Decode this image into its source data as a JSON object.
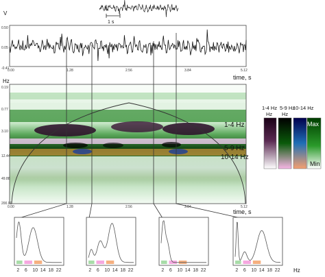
{
  "top_signal": {
    "scale_label": "1 s"
  },
  "eeg": {
    "y_unit": "V",
    "y_ticks": [
      "0.50",
      "0.05",
      "-0.41"
    ],
    "x_ticks": [
      "0.00",
      "1.28",
      "2.56",
      "3.84",
      "5.12"
    ],
    "x_label": "time, s"
  },
  "spectrogram": {
    "y_unit": "Hz",
    "y_ticks": [
      "0.19",
      "0.77",
      "3.10",
      "12.44",
      "49.88",
      "200.00"
    ],
    "x_ticks": [
      "0.00",
      "1.28",
      "2.56",
      "3.84",
      "5.12"
    ],
    "x_label": "time, s",
    "band_labels": [
      "1-4 Hz",
      "5-9 Hz",
      "10-14 Hz"
    ]
  },
  "colorbar": {
    "columns": [
      "1-4 Hz",
      "5-9 Hz",
      "10-14 Hz"
    ],
    "max_label": "Max",
    "min_label": "Min",
    "colors": {
      "delta": [
        "#1a0016",
        "#5a2a52",
        "#ffffff"
      ],
      "theta": [
        "#000000",
        "#006600",
        "#f7b6e6"
      ],
      "alpha": [
        "#00004d",
        "#1f6fb5",
        "#f5a070"
      ],
      "green": [
        "#003d00",
        "#2a9a2a",
        "#ffffff"
      ]
    }
  },
  "spectra": {
    "x_ticks": [
      "2",
      "6",
      "10",
      "14",
      "18",
      "22"
    ],
    "x_unit": "Hz",
    "band_colors": {
      "delta": "#a8dca8",
      "theta": "#f5a8e0",
      "alpha": "#f5b080"
    }
  }
}
